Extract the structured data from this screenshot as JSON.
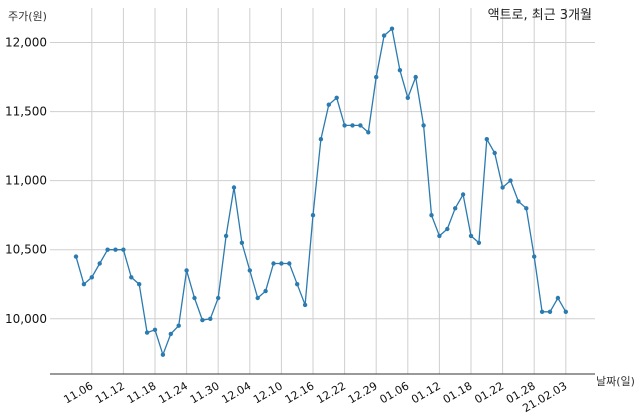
{
  "chart_data": {
    "type": "line",
    "title": "액트로, 최근 3개월",
    "ylabel": "주가(원)",
    "xlabel": "날짜(일)",
    "ylim": [
      9600,
      12250
    ],
    "y_ticks": [
      10000,
      10500,
      11000,
      11500,
      12000
    ],
    "y_tick_labels": [
      "10,000",
      "10,500",
      "11,000",
      "11,500",
      "12,000"
    ],
    "x_tick_labels": [
      "11.06",
      "11.12",
      "11.18",
      "11.24",
      "11.30",
      "12.04",
      "12.10",
      "12.16",
      "12.22",
      "12.29",
      "01.06",
      "01.12",
      "01.18",
      "01.22",
      "01.28",
      "21.02.03"
    ],
    "x_tick_positions": [
      2,
      6,
      10,
      14,
      18,
      22,
      26,
      30,
      34,
      38,
      42,
      46,
      50,
      54,
      58,
      62
    ],
    "grid": true,
    "series": [
      {
        "color": "#2b7bb0",
        "values": [
          10450,
          10250,
          10300,
          10400,
          10500,
          10500,
          10500,
          10300,
          10250,
          9900,
          9920,
          9740,
          9890,
          9950,
          10350,
          10150,
          9990,
          10000,
          10150,
          10600,
          10950,
          10550,
          10350,
          10150,
          10200,
          10400,
          10400,
          10400,
          10250,
          10100,
          10750,
          11300,
          11550,
          11600,
          11400,
          11400,
          11400,
          11350,
          11750,
          12050,
          12100,
          11800,
          11600,
          11750,
          11400,
          10750,
          10600,
          10650,
          10800,
          10900,
          10600,
          10550,
          11300,
          11200,
          10950,
          11000,
          10850,
          10800,
          10450,
          10050,
          10050,
          10150,
          10050
        ]
      }
    ]
  }
}
